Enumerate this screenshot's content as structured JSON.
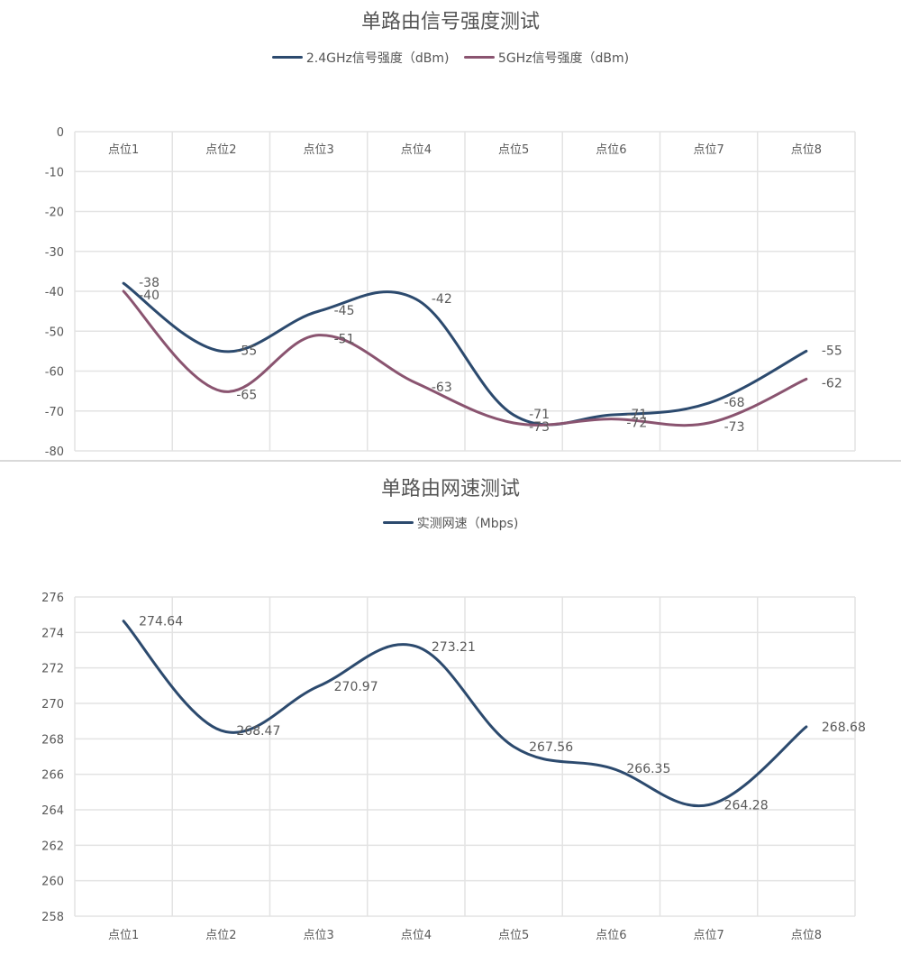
{
  "charts": [
    {
      "type": "line",
      "title": "单路由信号强度测试",
      "categories": [
        "点位1",
        "点位2",
        "点位3",
        "点位4",
        "点位5",
        "点位6",
        "点位7",
        "点位8"
      ],
      "ylim": [
        -80,
        0
      ],
      "ystep": 10,
      "yticks": [
        "0",
        "-10",
        "-20",
        "-30",
        "-40",
        "-50",
        "-60",
        "-70",
        "-80"
      ],
      "xaxis_position": "top",
      "series": [
        {
          "name": "2.4GHz信号强度（dBm)",
          "color": "#2c4a6e",
          "values": [
            -38,
            -55,
            -45,
            -42,
            -71,
            -71,
            -68,
            -55
          ],
          "labels": [
            "-38",
            "-55",
            "-45",
            "-42",
            "-71",
            "-71",
            "-68",
            "-55"
          ]
        },
        {
          "name": "5GHz信号强度（dBm)",
          "color": "#8a5470",
          "values": [
            -40,
            -65,
            -51,
            -63,
            -73,
            -72,
            -73,
            -62
          ],
          "labels": [
            "-40",
            "-65",
            "-51",
            "-63",
            "-73",
            "-72",
            "-73",
            "-62"
          ]
        }
      ]
    },
    {
      "type": "line",
      "title": "单路由网速测试",
      "categories": [
        "点位1",
        "点位2",
        "点位3",
        "点位4",
        "点位5",
        "点位6",
        "点位7",
        "点位8"
      ],
      "ylim": [
        258,
        276
      ],
      "ystep": 2,
      "yticks": [
        "276",
        "274",
        "272",
        "270",
        "268",
        "266",
        "264",
        "262",
        "260",
        "258"
      ],
      "xaxis_position": "bottom",
      "series": [
        {
          "name": "实测网速（Mbps)",
          "color": "#2c4a6e",
          "values": [
            274.64,
            268.47,
            270.97,
            273.21,
            267.56,
            266.35,
            264.28,
            268.68
          ],
          "labels": [
            "274.64",
            "268.47",
            "270.97",
            "273.21",
            "267.56",
            "266.35",
            "264.28",
            "268.68"
          ]
        }
      ]
    }
  ]
}
